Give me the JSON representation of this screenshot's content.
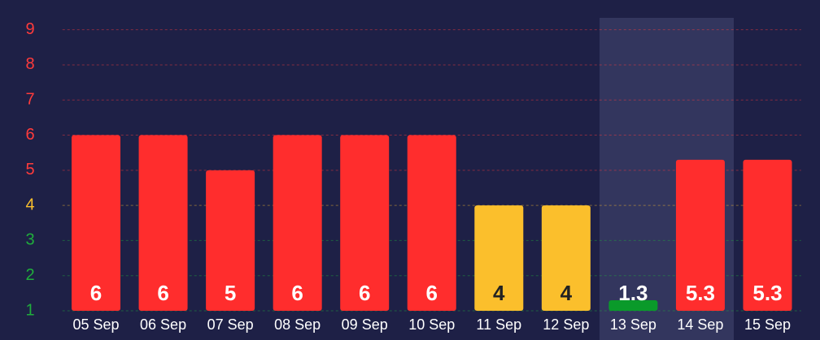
{
  "chart_data": {
    "type": "bar",
    "categories": [
      "05 Sep",
      "06 Sep",
      "07 Sep",
      "08 Sep",
      "09 Sep",
      "10 Sep",
      "11 Sep",
      "12 Sep",
      "13 Sep",
      "14 Sep",
      "15 Sep"
    ],
    "values": [
      6,
      6,
      5,
      6,
      6,
      6,
      4,
      4,
      1.3,
      5.3,
      5.3
    ],
    "colors": [
      "#ff2d2d",
      "#ff2d2d",
      "#ff2d2d",
      "#ff2d2d",
      "#ff2d2d",
      "#ff2d2d",
      "#fbbf2c",
      "#fbbf2c",
      "#0a9a2a",
      "#ff2d2d",
      "#ff2d2d"
    ],
    "ylim": [
      1,
      9.5
    ],
    "yticks": [
      1,
      2,
      3,
      4,
      5,
      6,
      7,
      8,
      9
    ],
    "ytick_colors": [
      "#1fae3c",
      "#1fae3c",
      "#1fae3c",
      "#fbbf2c",
      "#ff3b3b",
      "#ff3b3b",
      "#ff3b3b",
      "#ff3b3b",
      "#ff3b3b"
    ],
    "grid": true
  }
}
